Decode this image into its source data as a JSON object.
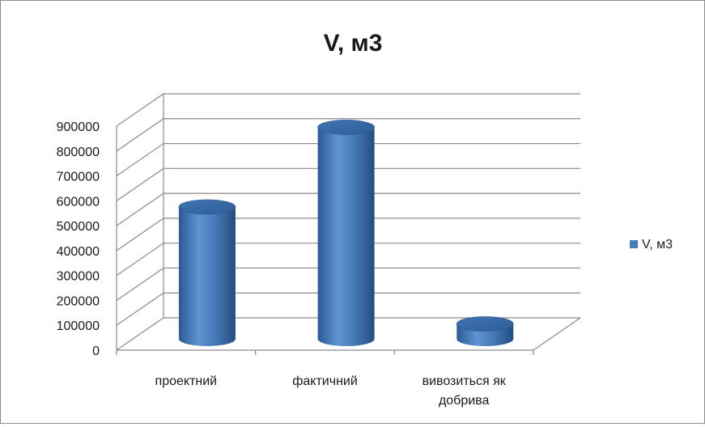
{
  "chart_data": {
    "type": "bar",
    "style": "3d-cylinder",
    "title": "V, м3",
    "categories": [
      "проектний",
      "фактичний",
      "вивозиться як\nдобрива"
    ],
    "series": [
      {
        "name": "V, м3",
        "values": [
          530000,
          850000,
          60000
        ],
        "color": "#4a7ebb"
      }
    ],
    "ylim": [
      0,
      900000
    ],
    "yticks": [
      0,
      100000,
      200000,
      300000,
      400000,
      500000,
      600000,
      700000,
      800000,
      900000
    ],
    "xlabel": "",
    "ylabel": "",
    "grid": true,
    "legend": "right"
  }
}
